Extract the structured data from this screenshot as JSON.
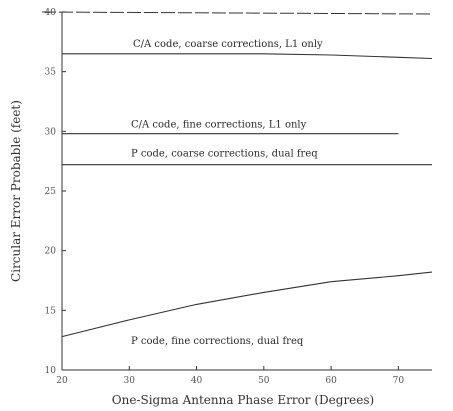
{
  "chart_data": {
    "type": "line",
    "title": "",
    "xlabel": "One-Sigma Antenna Phase Error (Degrees)",
    "ylabel": "Circular Error Probable (feet)",
    "xlim": [
      20,
      75
    ],
    "ylim": [
      10,
      40
    ],
    "xticks": [
      20,
      30,
      40,
      50,
      60,
      70
    ],
    "yticks": [
      10,
      15,
      20,
      25,
      30,
      35,
      40
    ],
    "xtick_labels": [
      "20",
      "30",
      "40",
      "50",
      "60",
      "70"
    ],
    "ytick_labels": [
      "10",
      "15",
      "20",
      "25",
      "30",
      "35",
      "40"
    ],
    "grid": false,
    "legend": "none",
    "series": [
      {
        "name": "C/A code, coarse corrections, L1 only",
        "x": [
          20,
          30,
          40,
          50,
          60,
          70,
          75
        ],
        "y": [
          36.5,
          36.5,
          36.5,
          36.5,
          36.4,
          36.2,
          36.1
        ]
      },
      {
        "name": "C/A code, fine corrections, L1 only",
        "x": [
          20,
          30,
          40,
          50,
          60,
          70
        ],
        "y": [
          29.8,
          29.8,
          29.8,
          29.8,
          29.8,
          29.8
        ]
      },
      {
        "name": "P code, coarse corrections, dual freq",
        "x": [
          20,
          30,
          40,
          50,
          60,
          70,
          75
        ],
        "y": [
          27.2,
          27.2,
          27.2,
          27.2,
          27.2,
          27.2,
          27.2
        ]
      },
      {
        "name": "P code, fine corrections, dual freq",
        "x": [
          20,
          30,
          40,
          50,
          60,
          70,
          75
        ],
        "y": [
          12.8,
          14.2,
          15.5,
          16.5,
          17.4,
          17.9,
          18.2
        ]
      }
    ],
    "top_border_y": 40
  }
}
